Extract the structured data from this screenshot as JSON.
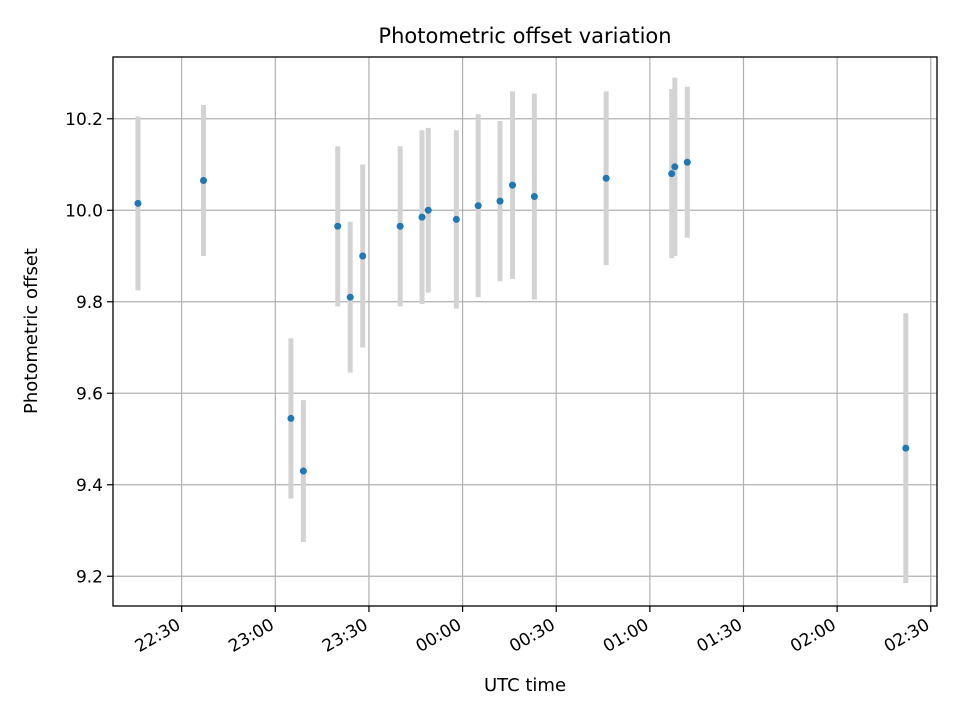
{
  "chart_data": {
    "type": "scatter",
    "title": "Photometric offset variation",
    "xlabel": "UTC time",
    "ylabel": "Photometric offset",
    "xlim": [
      "22:08",
      "02:32"
    ],
    "ylim": [
      9.135,
      10.335
    ],
    "grid": true,
    "x_ticks": [
      "22:30",
      "23:00",
      "23:30",
      "00:00",
      "00:30",
      "01:00",
      "01:30",
      "02:00",
      "02:30"
    ],
    "y_ticks": [
      "9.2",
      "9.4",
      "9.6",
      "9.8",
      "10.0",
      "10.2"
    ],
    "point_color": "#1f77b4",
    "errorbar_color": "#d3d3d3",
    "series": [
      {
        "x": [
          "22:16",
          "22:37",
          "23:05",
          "23:09",
          "23:20",
          "23:24",
          "23:28",
          "23:40",
          "23:47",
          "23:49",
          "23:58",
          "00:05",
          "00:12",
          "00:16",
          "00:23",
          "00:46",
          "01:07",
          "01:08",
          "01:12",
          "02:22"
        ],
        "y": [
          10.015,
          10.065,
          9.545,
          9.43,
          9.965,
          9.81,
          9.9,
          9.965,
          9.985,
          10.0,
          9.98,
          10.01,
          10.02,
          10.055,
          10.03,
          10.07,
          10.08,
          10.095,
          10.105,
          9.48
        ],
        "err": [
          0.19,
          0.165,
          0.175,
          0.155,
          0.175,
          0.165,
          0.2,
          0.175,
          0.19,
          0.18,
          0.195,
          0.2,
          0.175,
          0.205,
          0.225,
          0.19,
          0.185,
          0.195,
          0.165,
          0.295
        ]
      }
    ]
  }
}
